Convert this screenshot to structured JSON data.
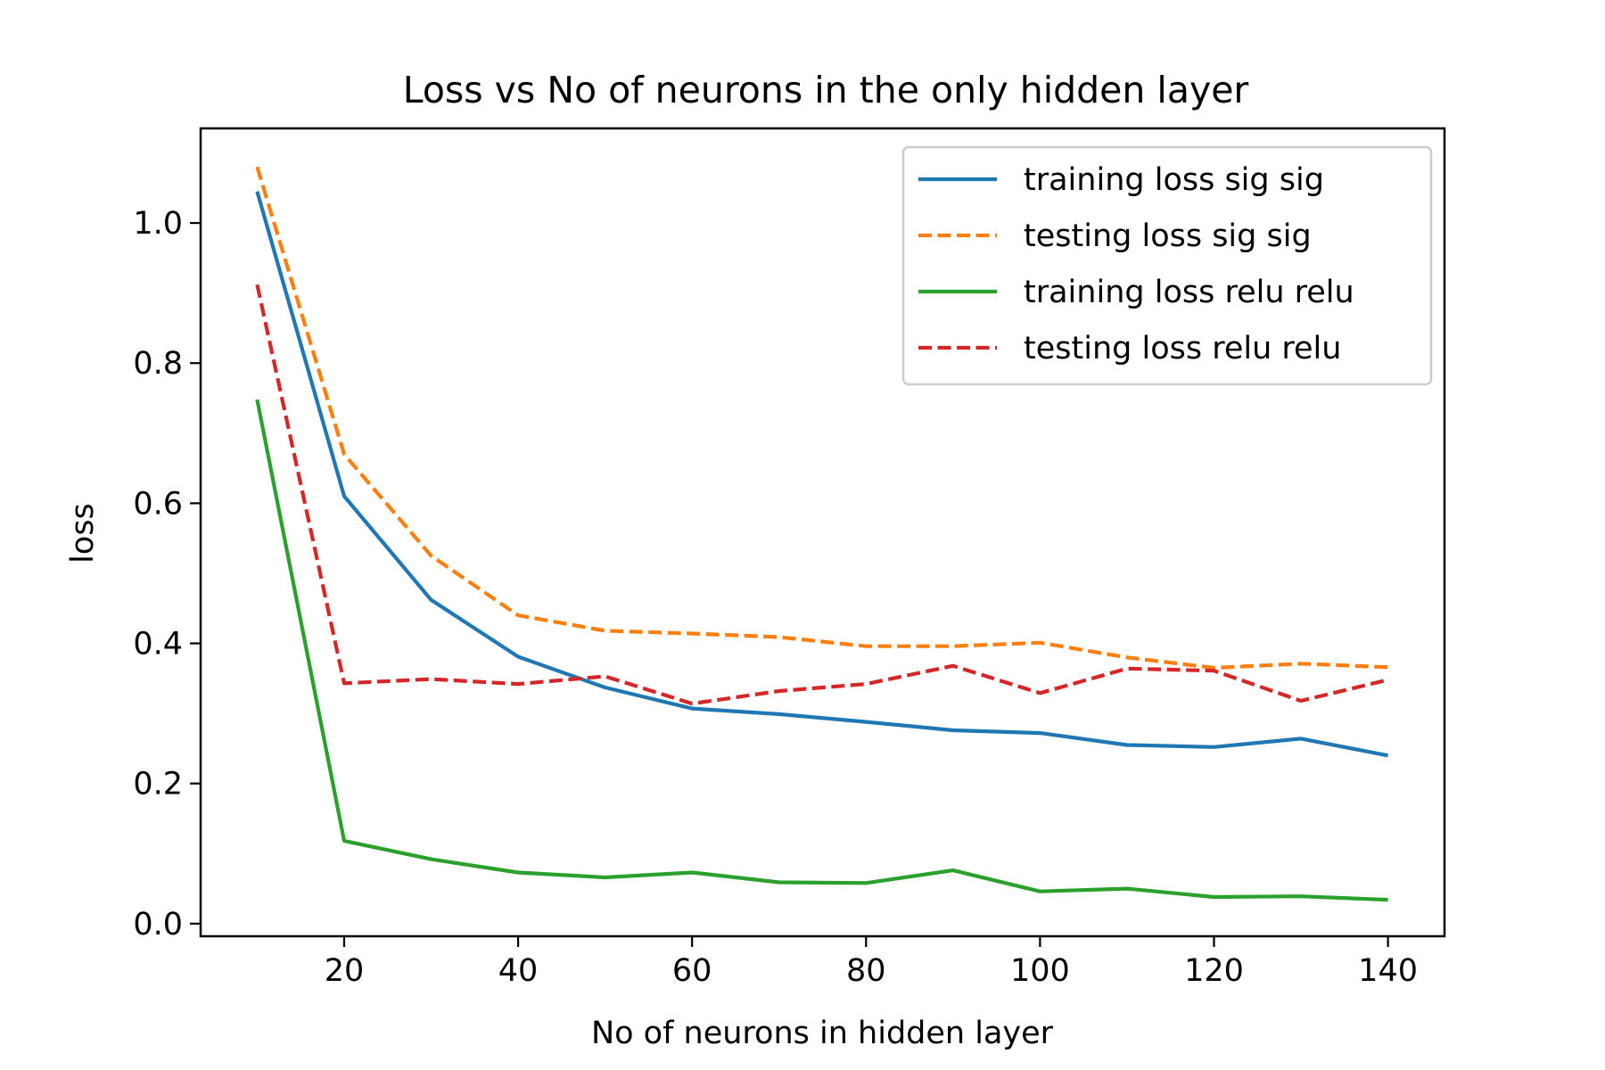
{
  "chart_data": {
    "type": "line",
    "title": "Loss vs No of neurons in the only hidden layer",
    "xlabel": "No of neurons in hidden layer",
    "ylabel": "loss",
    "xlim": [
      3.5,
      146.5
    ],
    "ylim": [
      -0.018,
      1.135
    ],
    "xticks": [
      20,
      40,
      60,
      80,
      100,
      120,
      140
    ],
    "yticks": [
      0.0,
      0.2,
      0.4,
      0.6,
      0.8,
      1.0
    ],
    "xtick_labels": [
      "20",
      "40",
      "60",
      "80",
      "100",
      "120",
      "140"
    ],
    "ytick_labels": [
      "0.0",
      "0.2",
      "0.4",
      "0.6",
      "0.8",
      "1.0"
    ],
    "grid": false,
    "legend_position": "top-right",
    "x": [
      10,
      20,
      30,
      40,
      50,
      60,
      70,
      80,
      90,
      100,
      110,
      120,
      130,
      140
    ],
    "series": [
      {
        "name": "training loss sig sig",
        "color": "#1f77b4",
        "linestyle": "solid",
        "values": [
          1.045,
          0.61,
          0.462,
          0.381,
          0.337,
          0.307,
          0.299,
          0.288,
          0.276,
          0.272,
          0.255,
          0.252,
          0.264,
          0.24
        ]
      },
      {
        "name": "testing loss sig sig",
        "color": "#ff7f0e",
        "linestyle": "dashed",
        "values": [
          1.08,
          0.67,
          0.525,
          0.44,
          0.418,
          0.414,
          0.409,
          0.396,
          0.396,
          0.401,
          0.38,
          0.365,
          0.371,
          0.366
        ]
      },
      {
        "name": "training loss relu relu",
        "color": "#2ca02c",
        "linestyle": "solid",
        "values": [
          0.748,
          0.118,
          0.092,
          0.073,
          0.066,
          0.073,
          0.059,
          0.058,
          0.076,
          0.046,
          0.05,
          0.038,
          0.039,
          0.034
        ]
      },
      {
        "name": "testing loss relu relu",
        "color": "#d62728",
        "linestyle": "dashed",
        "values": [
          0.912,
          0.343,
          0.349,
          0.342,
          0.353,
          0.314,
          0.332,
          0.342,
          0.368,
          0.329,
          0.364,
          0.361,
          0.318,
          0.348
        ]
      }
    ]
  }
}
